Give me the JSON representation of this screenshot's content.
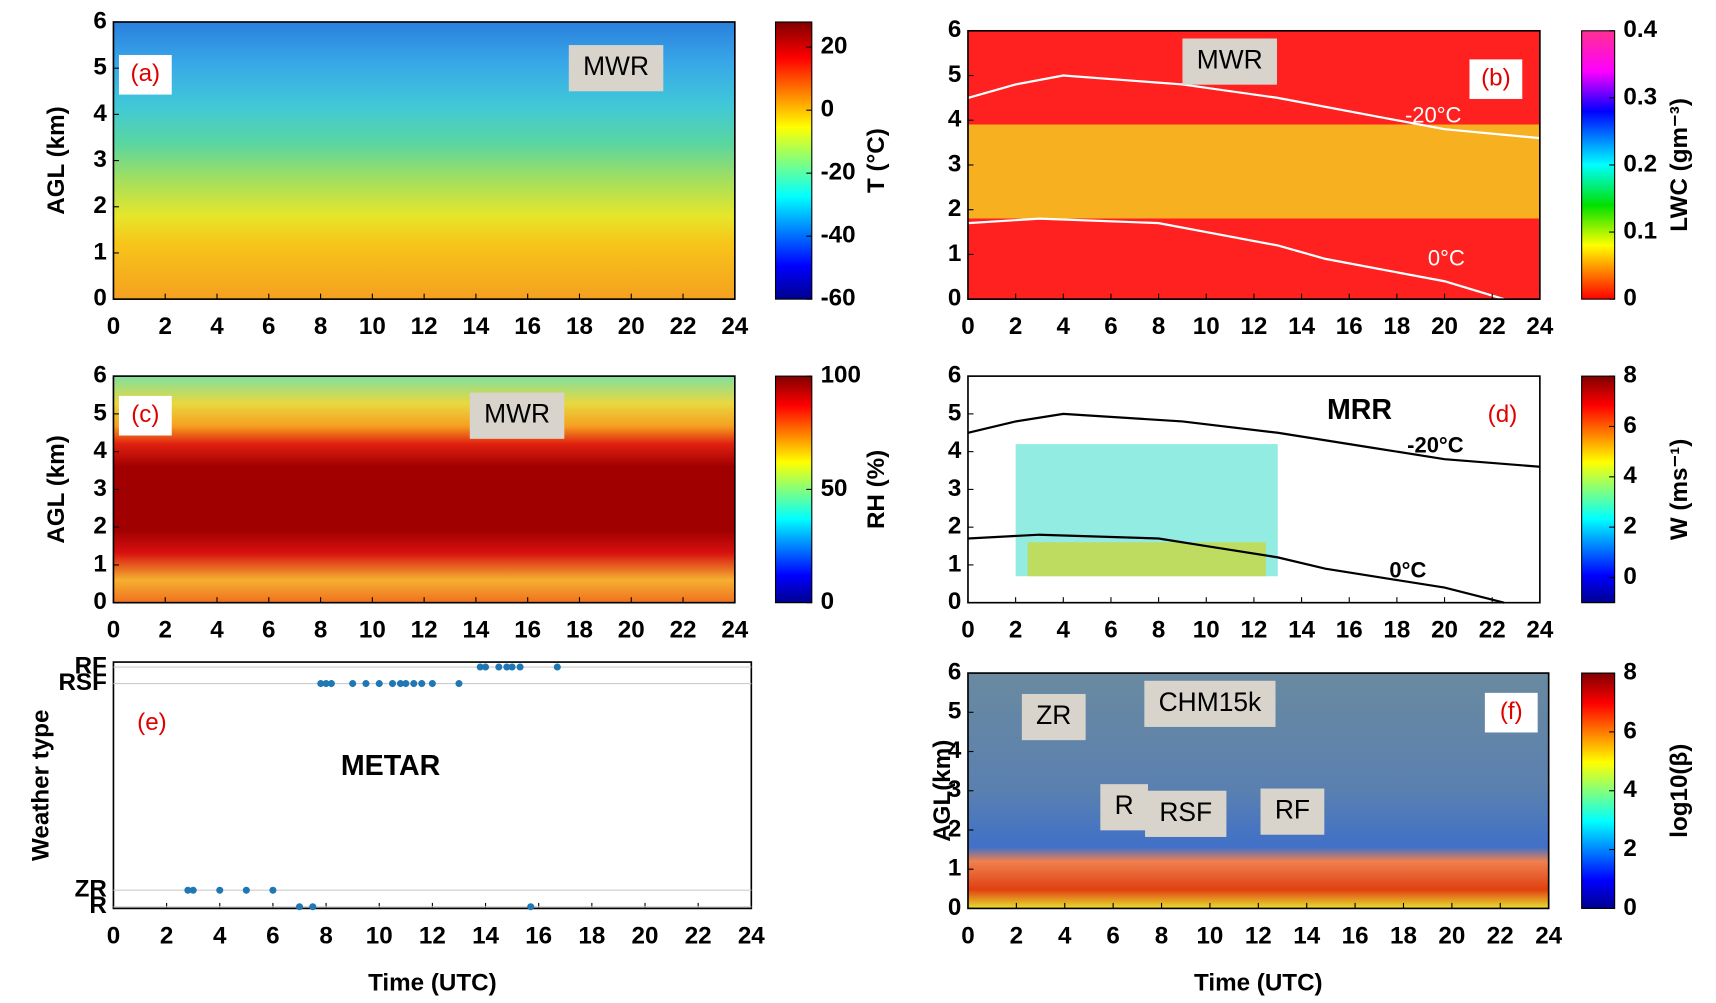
{
  "chart_data": [
    {
      "type": "contour",
      "panel_label": "(a)",
      "annotations": [
        "MWR"
      ],
      "ylabel": "AGL (km)",
      "xlim": [
        0,
        24
      ],
      "xticks": [
        0,
        2,
        4,
        6,
        8,
        10,
        12,
        14,
        16,
        18,
        20,
        22,
        24
      ],
      "ylim": [
        0,
        6
      ],
      "yticks": [
        0,
        1,
        2,
        3,
        4,
        5,
        6
      ],
      "colorbar": {
        "label": "T (°C)",
        "lim": [
          -60,
          28
        ],
        "ticks": [
          -60,
          -40,
          -20,
          0,
          20
        ]
      }
    },
    {
      "type": "contour",
      "panel_label": "(b)",
      "annotations": [
        "MWR",
        "-20°C",
        "0°C"
      ],
      "xlim": [
        0,
        24
      ],
      "xticks": [
        0,
        2,
        4,
        6,
        8,
        10,
        12,
        14,
        16,
        18,
        20,
        22,
        24
      ],
      "ylim": [
        0,
        6
      ],
      "yticks": [
        0,
        1,
        2,
        3,
        4,
        5,
        6
      ],
      "colorbar": {
        "label": "LWC (gm⁻³)",
        "lim": [
          0,
          0.4
        ],
        "ticks": [
          0,
          0.1,
          0.2,
          0.3,
          0.4
        ]
      }
    },
    {
      "type": "contour",
      "panel_label": "(c)",
      "annotations": [
        "MWR"
      ],
      "ylabel": "AGL (km)",
      "xlim": [
        0,
        24
      ],
      "xticks": [
        0,
        2,
        4,
        6,
        8,
        10,
        12,
        14,
        16,
        18,
        20,
        22,
        24
      ],
      "ylim": [
        0,
        6
      ],
      "yticks": [
        0,
        1,
        2,
        3,
        4,
        5,
        6
      ],
      "colorbar": {
        "label": "RH (%)",
        "lim": [
          0,
          100
        ],
        "ticks": [
          0,
          50,
          100
        ]
      }
    },
    {
      "type": "contour",
      "panel_label": "(d)",
      "annotations": [
        "MRR",
        "-20°C",
        "0°C"
      ],
      "xlim": [
        0,
        24
      ],
      "xticks": [
        0,
        2,
        4,
        6,
        8,
        10,
        12,
        14,
        16,
        18,
        20,
        22,
        24
      ],
      "ylim": [
        0,
        6
      ],
      "yticks": [
        0,
        1,
        2,
        3,
        4,
        5,
        6
      ],
      "colorbar": {
        "label": "W (ms⁻¹)",
        "lim": [
          -1,
          8
        ],
        "ticks": [
          0,
          2,
          4,
          6,
          8
        ]
      }
    },
    {
      "type": "scatter",
      "panel_label": "(e)",
      "annotations": [
        "METAR"
      ],
      "ylabel": "Weather type",
      "xlabel": "Time (UTC)",
      "xlim": [
        0,
        24
      ],
      "xticks": [
        0,
        2,
        4,
        6,
        8,
        10,
        12,
        14,
        16,
        18,
        20,
        22,
        24
      ],
      "ylim": [
        -0.1,
        14.8
      ],
      "yticks": [
        {
          "value": 0,
          "label": "R"
        },
        {
          "value": 1,
          "label": "ZR"
        },
        {
          "value": 13.5,
          "label": "RSF"
        },
        {
          "value": 14.5,
          "label": "RF"
        }
      ],
      "color": "#1f77b4",
      "x": [
        2.8,
        3.0,
        4.0,
        5.0,
        6.0,
        7.0,
        7.5,
        15.7,
        7.8,
        8.0,
        8.2,
        9.0,
        9.5,
        10.0,
        10.5,
        10.8,
        11.0,
        11.3,
        11.6,
        12.0,
        13.0,
        13.8,
        14.0,
        14.5,
        14.8,
        15.0,
        15.3,
        16.7
      ],
      "values": [
        1,
        1,
        1,
        1,
        1,
        0,
        0,
        0,
        13.5,
        13.5,
        13.5,
        13.5,
        13.5,
        13.5,
        13.5,
        13.5,
        13.5,
        13.5,
        13.5,
        13.5,
        13.5,
        14.5,
        14.5,
        14.5,
        14.5,
        14.5,
        14.5,
        14.5
      ]
    },
    {
      "type": "contour",
      "panel_label": "(f)",
      "annotations": [
        "CHM15k",
        "ZR",
        "R",
        "RSF",
        "RF"
      ],
      "ylabel": "AGL(km)",
      "xlabel": "Time (UTC)",
      "xlim": [
        0,
        24
      ],
      "xticks": [
        0,
        2,
        4,
        6,
        8,
        10,
        12,
        14,
        16,
        18,
        20,
        22,
        24
      ],
      "ylim": [
        0,
        6
      ],
      "yticks": [
        0,
        1,
        2,
        3,
        4,
        5,
        6
      ],
      "colorbar": {
        "label": "log10(β)",
        "lim": [
          0,
          8
        ],
        "ticks": [
          0,
          2,
          4,
          6,
          8
        ]
      }
    }
  ]
}
